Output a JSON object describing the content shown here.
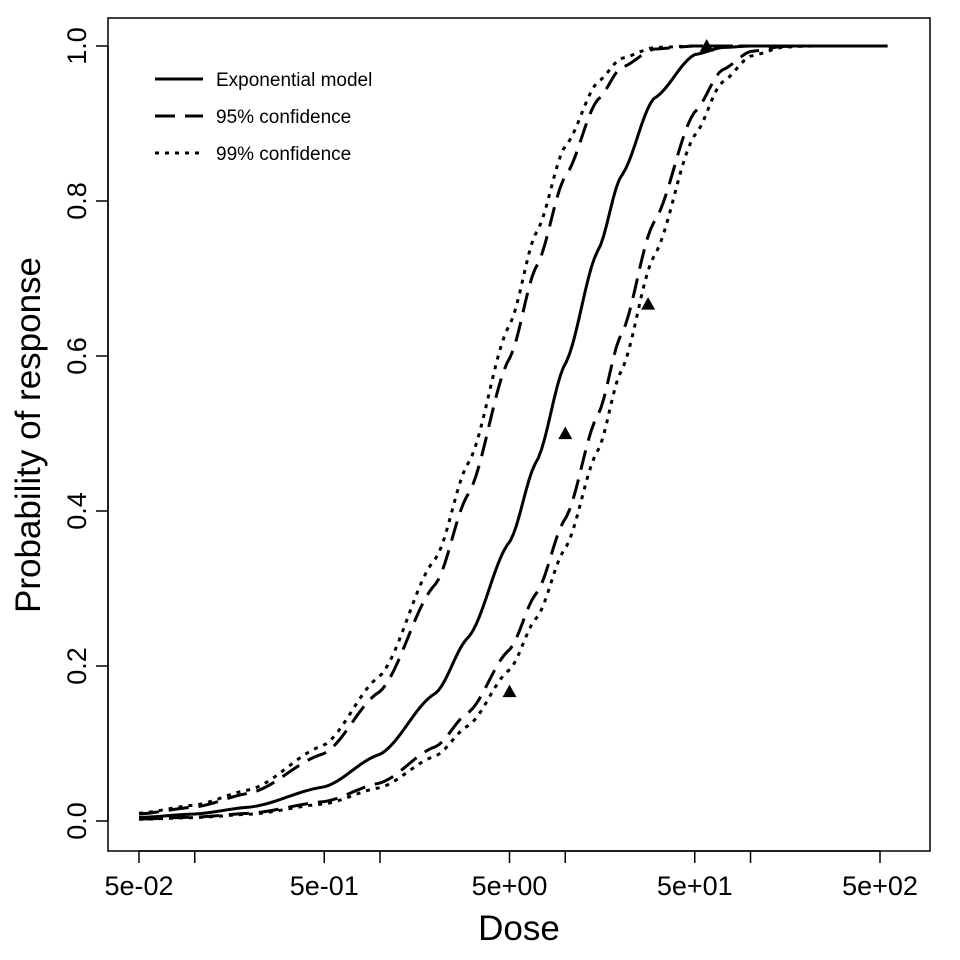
{
  "chart_data": {
    "type": "line",
    "xlabel": "Dose",
    "ylabel": "Probability of response",
    "x_scale": "log",
    "xlim": [
      0.05,
      500
    ],
    "ylim": [
      0,
      1
    ],
    "x_ticks": [
      {
        "value": 0.05,
        "label": "5e-02"
      },
      {
        "value": 0.5,
        "label": "5e-01"
      },
      {
        "value": 5,
        "label": "5e+00"
      },
      {
        "value": 50,
        "label": "5e+01"
      },
      {
        "value": 500,
        "label": "5e+02"
      }
    ],
    "x_minor_ticks": [
      0.1,
      1,
      10,
      100
    ],
    "y_ticks": [
      {
        "value": 0.0,
        "label": "0.0"
      },
      {
        "value": 0.2,
        "label": "0.2"
      },
      {
        "value": 0.4,
        "label": "0.4"
      },
      {
        "value": 0.6,
        "label": "0.6"
      },
      {
        "value": 0.8,
        "label": "0.8"
      },
      {
        "value": 1.0,
        "label": "1.0"
      }
    ],
    "grid": false,
    "legend_position": "top-left",
    "series": [
      {
        "name": "Exponential model",
        "style": "solid",
        "x": [
          0.05,
          0.1,
          0.2,
          0.5,
          1,
          2,
          3,
          5,
          7,
          10,
          15,
          20,
          30,
          50,
          70,
          100,
          150,
          200,
          300,
          550
        ],
        "y": [
          0.0045,
          0.009,
          0.018,
          0.044,
          0.086,
          0.165,
          0.237,
          0.36,
          0.464,
          0.59,
          0.736,
          0.832,
          0.932,
          0.989,
          0.998,
          1.0,
          1.0,
          1.0,
          1.0,
          1.0
        ]
      },
      {
        "name": "95% confidence",
        "style": "dashed",
        "x": [
          0.05,
          0.1,
          0.2,
          0.5,
          1,
          2,
          3,
          5,
          7,
          10,
          15,
          20,
          30,
          50,
          70,
          100,
          150,
          200,
          300,
          550
        ],
        "y": [
          0.009,
          0.018,
          0.036,
          0.087,
          0.167,
          0.306,
          0.422,
          0.597,
          0.716,
          0.832,
          0.931,
          0.972,
          0.996,
          1.0,
          1.0,
          1.0,
          1.0,
          1.0,
          1.0,
          1.0
        ]
      },
      {
        "name": "95% confidence",
        "style": "dashed",
        "show_in_legend": false,
        "x": [
          0.05,
          0.1,
          0.2,
          0.5,
          1,
          2,
          3,
          5,
          7,
          10,
          15,
          20,
          30,
          50,
          70,
          100,
          150,
          200,
          300,
          550
        ],
        "y": [
          0.0025,
          0.005,
          0.01,
          0.025,
          0.049,
          0.096,
          0.14,
          0.221,
          0.294,
          0.39,
          0.524,
          0.627,
          0.772,
          0.915,
          0.969,
          0.993,
          0.9995,
          1.0,
          1.0,
          1.0
        ]
      },
      {
        "name": "99% confidence",
        "style": "dotted",
        "x": [
          0.05,
          0.1,
          0.2,
          0.5,
          1,
          2,
          3,
          5,
          7,
          10,
          15,
          20,
          30,
          50,
          70,
          100,
          150,
          200,
          300,
          550
        ],
        "y": [
          0.01,
          0.0205,
          0.0405,
          0.098,
          0.187,
          0.339,
          0.462,
          0.64,
          0.76,
          0.871,
          0.954,
          0.984,
          0.998,
          1.0,
          1.0,
          1.0,
          1.0,
          1.0,
          1.0,
          1.0
        ]
      },
      {
        "name": "99% confidence",
        "style": "dotted",
        "show_in_legend": false,
        "x": [
          0.05,
          0.1,
          0.2,
          0.5,
          1,
          2,
          3,
          5,
          7,
          10,
          15,
          20,
          30,
          50,
          70,
          100,
          150,
          200,
          300,
          550
        ],
        "y": [
          0.0022,
          0.0044,
          0.0088,
          0.022,
          0.043,
          0.084,
          0.123,
          0.195,
          0.262,
          0.352,
          0.478,
          0.58,
          0.728,
          0.885,
          0.953,
          0.987,
          0.9985,
          0.9999,
          1.0,
          1.0
        ]
      }
    ],
    "observed_points": {
      "marker": "triangle",
      "x": [
        5,
        10,
        28,
        58
      ],
      "y": [
        0.167,
        0.5,
        0.667,
        1.0
      ]
    },
    "legend": [
      {
        "label": "Exponential model",
        "style": "solid"
      },
      {
        "label": "95% confidence",
        "style": "dashed"
      },
      {
        "label": "99% confidence",
        "style": "dotted"
      }
    ]
  }
}
